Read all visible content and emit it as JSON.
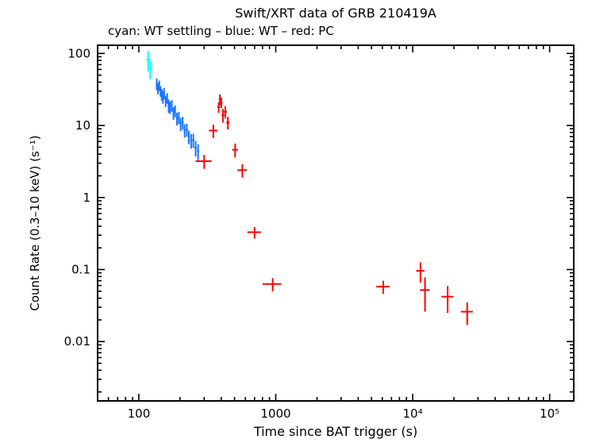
{
  "chart_data": {
    "type": "scatter",
    "title": "Swift/XRT data of GRB 210419A",
    "subtitle": "cyan: WT settling – blue: WT – red: PC",
    "xlabel": "Time since BAT trigger (s)",
    "ylabel": "Count Rate (0.3–10 keV) (s⁻¹)",
    "xscale": "log",
    "yscale": "log",
    "xlim": [
      50,
      150000
    ],
    "ylim": [
      0.0015,
      130
    ],
    "grid": false,
    "legend_position": "subtitle-line",
    "x_ticks": [
      {
        "value": 100,
        "label": "100"
      },
      {
        "value": 1000,
        "label": "1000"
      },
      {
        "value": 10000,
        "label": "10⁴"
      },
      {
        "value": 100000,
        "label": "10⁵"
      }
    ],
    "y_ticks": [
      {
        "value": 100,
        "label": "100"
      },
      {
        "value": 10,
        "label": "10"
      },
      {
        "value": 1,
        "label": "1"
      },
      {
        "value": 0.1,
        "label": "0.1"
      },
      {
        "value": 0.01,
        "label": "0.01"
      }
    ],
    "point_format": [
      "time_s",
      "time_err_s",
      "rate_cps",
      "rate_err_cps"
    ],
    "series": [
      {
        "key": "wt-settling",
        "name": "WT settling",
        "color": "#00ffff",
        "points": [
          [
            117,
            4,
            82,
            26
          ],
          [
            121,
            4,
            62,
            18
          ]
        ]
      },
      {
        "key": "wt",
        "name": "WT",
        "color": "#1a75ff",
        "points": [
          [
            135,
            2,
            38,
            7
          ],
          [
            138,
            2,
            33,
            6
          ],
          [
            141,
            2,
            36,
            6
          ],
          [
            144,
            2,
            30,
            5
          ],
          [
            147,
            2,
            27,
            5
          ],
          [
            150,
            2,
            25,
            5
          ],
          [
            153,
            2,
            28,
            5
          ],
          [
            157,
            2,
            22,
            4
          ],
          [
            161,
            2,
            24,
            4
          ],
          [
            165,
            2,
            19,
            4
          ],
          [
            169,
            2,
            18,
            3.5
          ],
          [
            174,
            2.5,
            19,
            3.5
          ],
          [
            179,
            2.5,
            15,
            3
          ],
          [
            184,
            2.5,
            16,
            3
          ],
          [
            190,
            3,
            12.5,
            2.5
          ],
          [
            196,
            3,
            13,
            2.5
          ],
          [
            202,
            3,
            10.5,
            2.2
          ],
          [
            209,
            3.5,
            11,
            2.2
          ],
          [
            216,
            3.5,
            8.6,
            1.8
          ],
          [
            224,
            4,
            8.8,
            1.8
          ],
          [
            232,
            4,
            7.0,
            1.5
          ],
          [
            241,
            4.5,
            6.2,
            1.4
          ],
          [
            250,
            4.5,
            6.3,
            1.4
          ],
          [
            260,
            5,
            4.9,
            1.2
          ],
          [
            271,
            5,
            4.4,
            1.1
          ]
        ]
      },
      {
        "key": "pc",
        "name": "PC",
        "color": "#ff0000",
        "points": [
          [
            300,
            40,
            3.2,
            0.7
          ],
          [
            350,
            25,
            8.5,
            1.8
          ],
          [
            383,
            9,
            18,
            3
          ],
          [
            391,
            8,
            23,
            4
          ],
          [
            400,
            8,
            21,
            3.5
          ],
          [
            411,
            10,
            14,
            3
          ],
          [
            428,
            12,
            15.5,
            3
          ],
          [
            447,
            12,
            11,
            2.2
          ],
          [
            505,
            25,
            4.6,
            1.0
          ],
          [
            570,
            45,
            2.4,
            0.5
          ],
          [
            700,
            80,
            0.33,
            0.06
          ],
          [
            950,
            150,
            0.063,
            0.013
          ],
          [
            6100,
            700,
            0.058,
            0.012
          ],
          [
            11400,
            800,
            0.096,
            0.03
          ],
          [
            12300,
            1000,
            0.052,
            0.026
          ],
          [
            18000,
            1800,
            0.042,
            0.017
          ],
          [
            25000,
            2500,
            0.026,
            0.009
          ]
        ]
      }
    ]
  }
}
